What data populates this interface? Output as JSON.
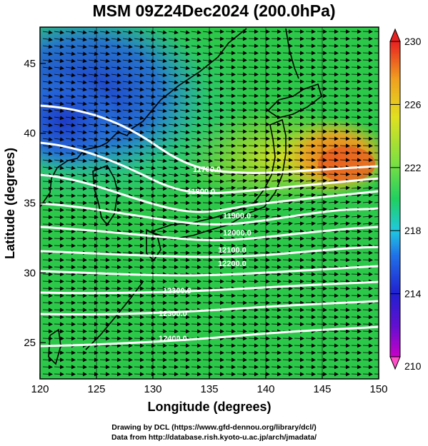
{
  "title": "MSM 09Z24Dec2024 (200.0hPa)",
  "x_axis": {
    "label": "Longitude (degrees)",
    "ticks": [
      "120",
      "125",
      "130",
      "135",
      "140",
      "145",
      "150"
    ],
    "range": [
      120,
      150
    ]
  },
  "y_axis": {
    "label": "Latitude  (degrees)",
    "ticks": [
      "25",
      "30",
      "35",
      "40",
      "45"
    ],
    "range": [
      22.4,
      47.6
    ]
  },
  "colorbar": {
    "ticks": [
      "230",
      "226",
      "222",
      "218",
      "214",
      "210"
    ],
    "range": [
      210,
      230
    ],
    "colors": [
      "#c800c8",
      "#2020d0",
      "#2070e8",
      "#20c8e0",
      "#20d060",
      "#80e040",
      "#e0e020",
      "#f0a020",
      "#e82020"
    ]
  },
  "contours": {
    "color": "#ffffff",
    "labels": [
      "11700.0",
      "11800.0",
      "11900.0",
      "12000.0",
      "12100.0",
      "12200.0",
      "12300.0",
      "12400.0"
    ]
  },
  "wind": "westerly",
  "credits": {
    "line1": "Drawing by DCL (https://www.gfd-dennou.org/library/dcl/)",
    "line2": "Data from http://database.rish.kyoto-u.ac.jp/arch/jmadata/"
  }
}
